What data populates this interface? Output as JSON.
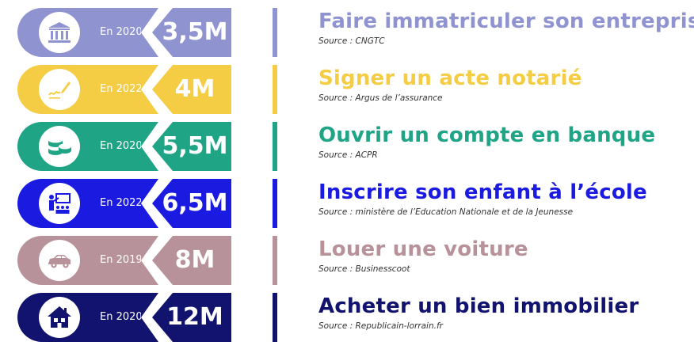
{
  "rows": [
    {
      "year": "En 2020",
      "value": "3,5M",
      "title": "Faire immatriculer son entreprise",
      "source": "Source : CNGTC",
      "color": "#8f93d0",
      "icon": "bank-building-icon"
    },
    {
      "year": "En 2022",
      "value": "4M",
      "title": "Signer un acte notarié",
      "source": "Source : Argus de l’assurance",
      "color": "#f5cd44",
      "icon": "signature-pen-icon"
    },
    {
      "year": "En 2020",
      "value": "5,5M",
      "title": "Ouvrir un compte en banque",
      "source": "Source : ACPR",
      "color": "#1fa585",
      "icon": "coins-stack-icon"
    },
    {
      "year": "En 2022",
      "value": "6,5M",
      "title": "Inscrire son enfant à l’école",
      "source": "Source : ministère de l’Education Nationale et de la Jeunesse",
      "color": "#1a1ae0",
      "icon": "classroom-teacher-icon"
    },
    {
      "year": "En 2019",
      "value": "8M",
      "title": "Louer une voiture",
      "source": "Source : Businesscoot",
      "color": "#b8929a",
      "icon": "car-icon"
    },
    {
      "year": "En 2020",
      "value": "12M",
      "title": "Acheter un bien immobilier",
      "source": "Source : Republicain-lorrain.fr",
      "color": "#12136e",
      "icon": "house-icon"
    }
  ]
}
